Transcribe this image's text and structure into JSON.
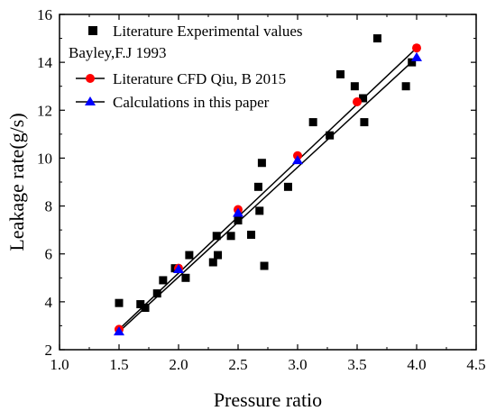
{
  "chart_data": {
    "type": "scatter",
    "title": "",
    "xlabel": "Pressure ratio",
    "ylabel": "Leakage rate(g/s)",
    "xlim": [
      1.0,
      4.5
    ],
    "ylim": [
      2,
      16
    ],
    "xticks": [
      "1.0",
      "1.5",
      "2.0",
      "2.5",
      "3.0",
      "3.5",
      "4.0",
      "4.5"
    ],
    "yticks": [
      "2",
      "4",
      "6",
      "8",
      "10",
      "12",
      "14",
      "16"
    ],
    "grid": false,
    "legend_placement": "top-left",
    "series": [
      {
        "name": "Literature Experimental values",
        "marker": "square",
        "color": "#000000",
        "points": [
          [
            1.5,
            3.95
          ],
          [
            1.68,
            3.9
          ],
          [
            1.72,
            3.75
          ],
          [
            1.82,
            4.35
          ],
          [
            1.87,
            4.9
          ],
          [
            1.97,
            5.4
          ],
          [
            2.06,
            5.0
          ],
          [
            2.09,
            5.95
          ],
          [
            2.29,
            5.65
          ],
          [
            2.32,
            6.75
          ],
          [
            2.33,
            5.95
          ],
          [
            2.44,
            6.75
          ],
          [
            2.5,
            7.4
          ],
          [
            2.61,
            6.8
          ],
          [
            2.67,
            8.8
          ],
          [
            2.68,
            7.8
          ],
          [
            2.7,
            9.8
          ],
          [
            2.72,
            5.5
          ],
          [
            2.92,
            8.8
          ],
          [
            3.27,
            10.95
          ],
          [
            3.13,
            11.5
          ],
          [
            3.36,
            13.5
          ],
          [
            3.48,
            13.0
          ],
          [
            3.55,
            12.5
          ],
          [
            3.56,
            11.5
          ],
          [
            3.67,
            15.0
          ],
          [
            3.91,
            13.0
          ],
          [
            3.96,
            14.0
          ]
        ]
      },
      {
        "name": "Literature CFD Qiu, B 2015",
        "marker": "circle",
        "color": "#ff0000",
        "points": [
          [
            1.5,
            2.85
          ],
          [
            2.0,
            5.4
          ],
          [
            2.5,
            7.85
          ],
          [
            3.0,
            10.1
          ],
          [
            3.5,
            12.35
          ],
          [
            4.0,
            14.6
          ]
        ]
      },
      {
        "name": "Calculations in this paper",
        "marker": "triangle",
        "color": "#0000ff",
        "points": [
          [
            1.5,
            2.75
          ],
          [
            2.0,
            5.35
          ],
          [
            2.5,
            7.7
          ],
          [
            3.0,
            9.9
          ],
          [
            4.0,
            14.2
          ]
        ]
      }
    ],
    "annotations": [
      "Bayley,F.J 1993"
    ],
    "fit_lines": [
      {
        "from": [
          1.5,
          2.85
        ],
        "to": [
          4.0,
          14.6
        ]
      },
      {
        "from": [
          1.5,
          2.75
        ],
        "to": [
          4.0,
          14.2
        ]
      }
    ]
  }
}
